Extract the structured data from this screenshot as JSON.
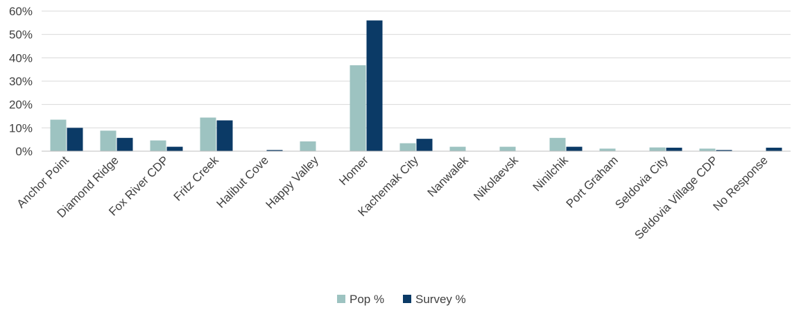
{
  "chart_data": {
    "type": "bar",
    "categories": [
      "Anchor Point",
      "Diamond Ridge",
      "Fox River CDP",
      "Fritz Creek",
      "Halibut Cove",
      "Happy Valley",
      "Homer",
      "Kachemak City",
      "Nanwalek",
      "Nikolaevsk",
      "Ninilchik",
      "Port Graham",
      "Seldovia City",
      "Seldovia Village CDP",
      "No Response"
    ],
    "series": [
      {
        "name": "Pop %",
        "color": "#9dc3c1",
        "values": [
          13.5,
          8.8,
          4.6,
          14.4,
          0,
          4.2,
          36.8,
          3.4,
          1.9,
          1.9,
          5.7,
          1.1,
          1.6,
          1.1,
          0
        ]
      },
      {
        "name": "Survey %",
        "color": "#0b3a66",
        "values": [
          10.0,
          5.7,
          1.9,
          13.2,
          0.5,
          0,
          56.0,
          5.3,
          0,
          0,
          1.9,
          0,
          1.5,
          0.5,
          1.5
        ]
      }
    ],
    "yticks": [
      "0%",
      "10%",
      "20%",
      "30%",
      "40%",
      "50%",
      "60%"
    ],
    "ylim": [
      0,
      60
    ],
    "grid": true,
    "legend_position": "bottom"
  }
}
